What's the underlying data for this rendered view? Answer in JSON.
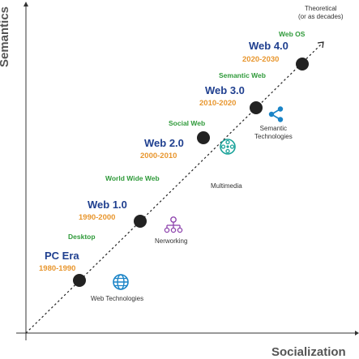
{
  "axes": {
    "x_title": "Socialization",
    "y_title": "Semantics"
  },
  "trend_note": [
    "Theoretical",
    "(or as decades)"
  ],
  "eras": [
    {
      "name": "PC Era",
      "years": "1980-1990"
    },
    {
      "name": "Web 1.0",
      "years": "1990-2000"
    },
    {
      "name": "Web 2.0",
      "years": "2000-2010"
    },
    {
      "name": "Web 3.0",
      "years": "2010-2020"
    },
    {
      "name": "Web 4.0",
      "years": "2020-2030"
    }
  ],
  "transitions": [
    "Desktop",
    "World Wide Web",
    "Social Web",
    "Semantic Web",
    "Web OS"
  ],
  "technologies": [
    {
      "label": "Web Technologies",
      "icon": "globe-icon"
    },
    {
      "label": "Nerworking",
      "icon": "network-icon"
    },
    {
      "label": "Multimedia",
      "icon": "film-reel-icon"
    },
    {
      "label": "Semantic Technologies",
      "lines": [
        "Semantic",
        "Technologies"
      ],
      "icon": "share-nodes-icon"
    }
  ],
  "colors": {
    "era_name": "#1f3f8f",
    "era_years": "#e8962e",
    "transition": "#2f9a3a",
    "icon": "#1a84c7",
    "network_icon": "#8e44ad",
    "film_icon": "#1aa39a",
    "node": "#222222"
  }
}
